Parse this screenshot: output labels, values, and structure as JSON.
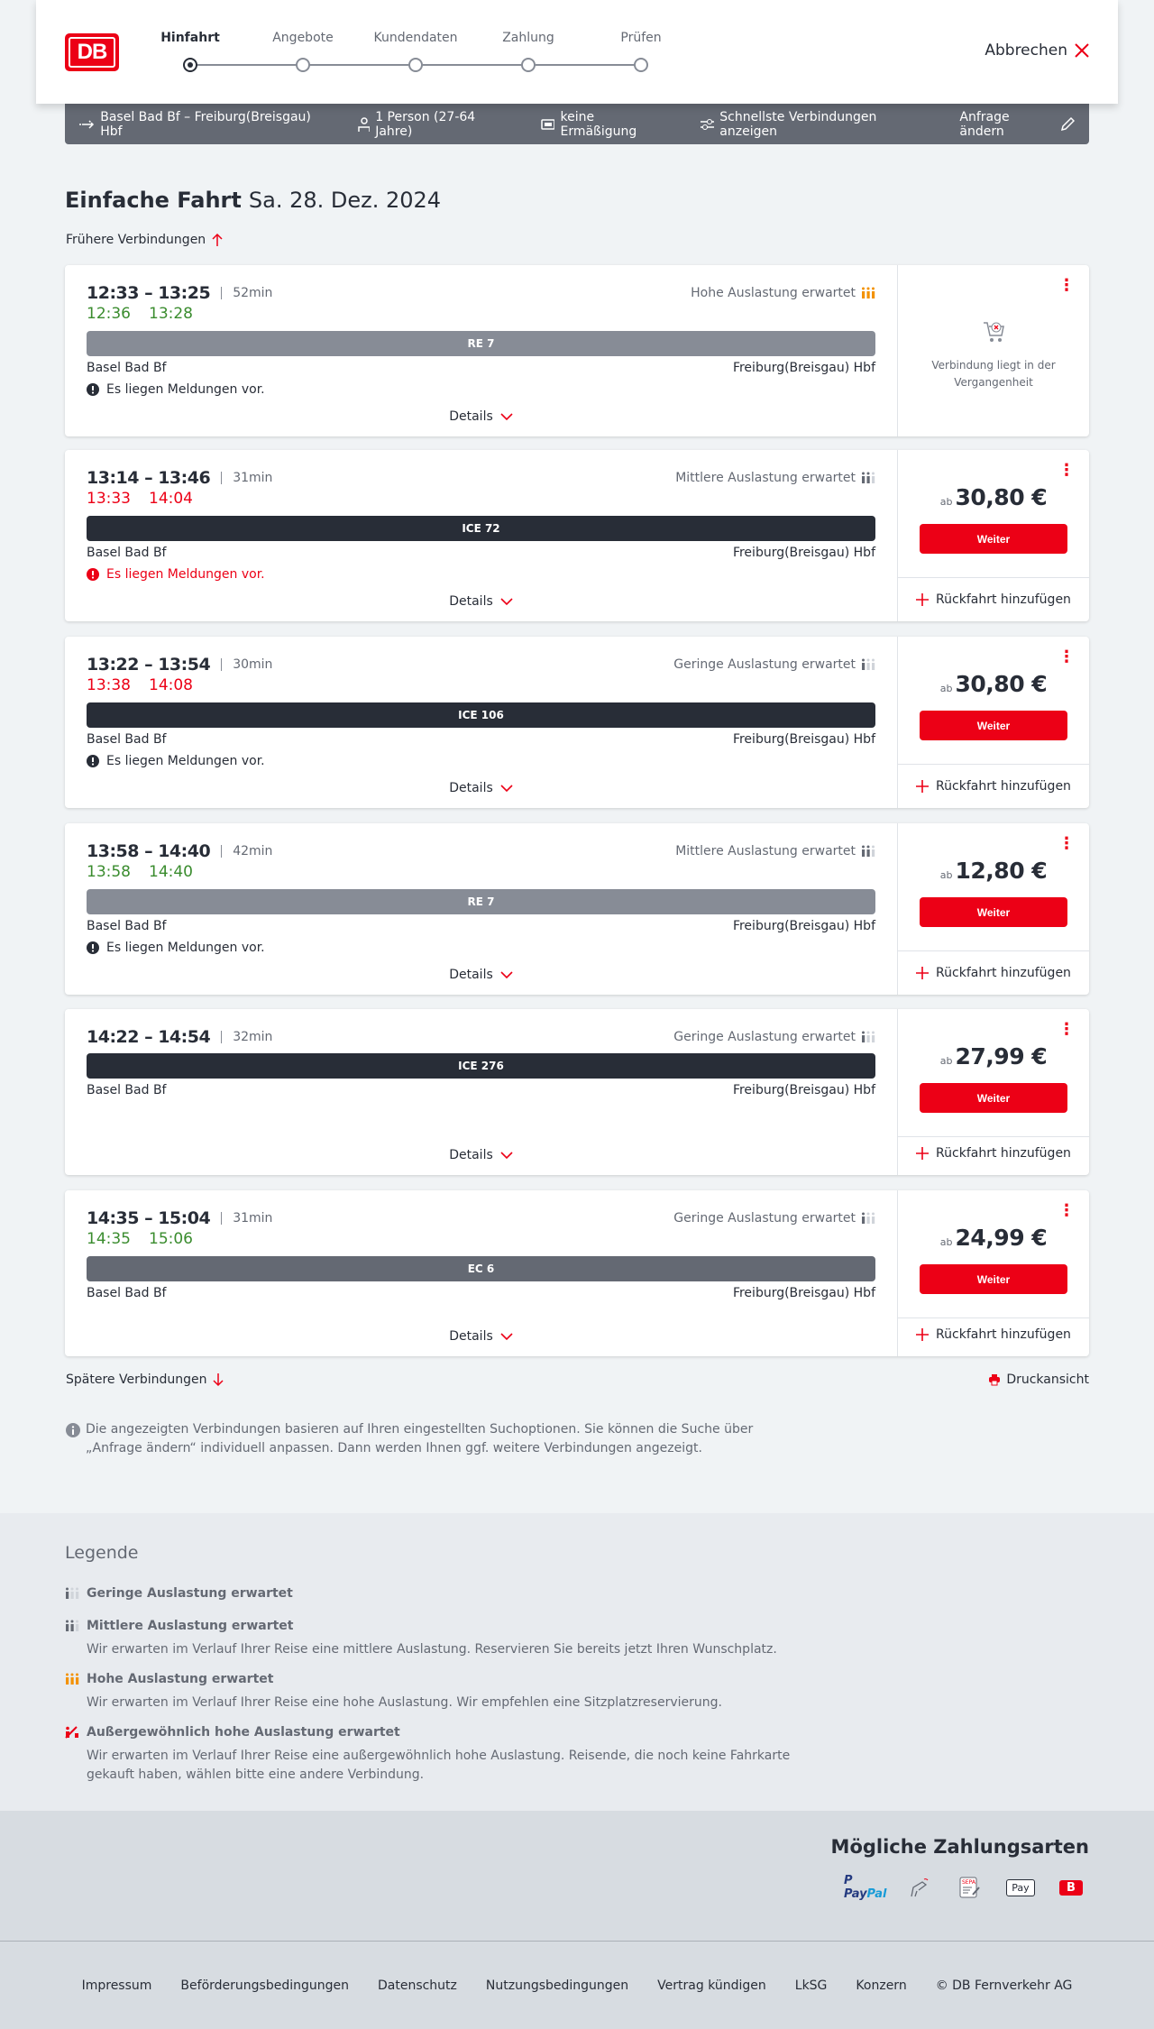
{
  "header": {
    "logo": "DB",
    "steps": [
      "Hinfahrt",
      "Angebote",
      "Kundendaten",
      "Zahlung",
      "Prüfen"
    ],
    "active_step": 0,
    "cancel": "Abbrechen"
  },
  "search_bar": {
    "route": "Basel Bad Bf – Freiburg(Breisgau) Hbf",
    "passengers": "1 Person (27-64 Jahre)",
    "discount": "keine Ermäßigung",
    "fastest": "Schnellste Verbindungen anzeigen",
    "edit": "Anfrage ändern"
  },
  "title": {
    "type": "Einfache Fahrt",
    "date": "Sa. 28. Dez. 2024"
  },
  "earlier": "Frühere Verbindungen",
  "later": "Spätere Verbindungen",
  "print": "Druckansicht",
  "colors": {
    "accent": "#ec0016",
    "on_time": "#3a8c2e",
    "high_occupancy": "#f39200"
  },
  "labels": {
    "details": "Details",
    "weiter": "Weiter",
    "ab": "ab",
    "return": "Rückfahrt hinzufügen",
    "past": "Verbindung liegt in der Vergangenheit"
  },
  "connections": [
    {
      "times": "12:33 – 13:25",
      "duration": "52min",
      "occupancy": "Hohe Auslastung erwartet",
      "occ_level": 3,
      "delay": [
        "12:36",
        "13:28"
      ],
      "delay_status": "on-time",
      "train": "RE 7",
      "train_color": "#878c96",
      "from": "Basel Bad Bf",
      "to": "Freiburg(Breisgau) Hbf",
      "message": "Es liegen Meldungen vor.",
      "message_severity": "info",
      "past": true
    },
    {
      "times": "13:14 – 13:46",
      "duration": "31min",
      "occupancy": "Mittlere Auslastung erwartet",
      "occ_level": 2,
      "delay": [
        "13:33",
        "14:04"
      ],
      "delay_status": "delayed",
      "train": "ICE 72",
      "train_color": "#282d37",
      "from": "Basel Bad Bf",
      "to": "Freiburg(Breisgau) Hbf",
      "message": "Es liegen Meldungen vor.",
      "message_severity": "warning",
      "price": "30,80 €"
    },
    {
      "times": "13:22 – 13:54",
      "duration": "30min",
      "occupancy": "Geringe Auslastung erwartet",
      "occ_level": 1,
      "delay": [
        "13:38",
        "14:08"
      ],
      "delay_status": "delayed",
      "train": "ICE 106",
      "train_color": "#282d37",
      "from": "Basel Bad Bf",
      "to": "Freiburg(Breisgau) Hbf",
      "message": "Es liegen Meldungen vor.",
      "message_severity": "info",
      "price": "30,80 €"
    },
    {
      "times": "13:58 – 14:40",
      "duration": "42min",
      "occupancy": "Mittlere Auslastung erwartet",
      "occ_level": 2,
      "delay": [
        "13:58",
        "14:40"
      ],
      "delay_status": "on-time",
      "train": "RE 7",
      "train_color": "#878c96",
      "from": "Basel Bad Bf",
      "to": "Freiburg(Breisgau) Hbf",
      "message": "Es liegen Meldungen vor.",
      "message_severity": "info",
      "price": "12,80 €"
    },
    {
      "times": "14:22 – 14:54",
      "duration": "32min",
      "occupancy": "Geringe Auslastung erwartet",
      "occ_level": 1,
      "train": "ICE 276",
      "train_color": "#282d37",
      "from": "Basel Bad Bf",
      "to": "Freiburg(Breisgau) Hbf",
      "price": "27,99 €"
    },
    {
      "times": "14:35 – 15:04",
      "duration": "31min",
      "occupancy": "Geringe Auslastung erwartet",
      "occ_level": 1,
      "delay": [
        "14:35",
        "15:06"
      ],
      "delay_status": "on-time",
      "train": "EC 6",
      "train_color": "#646973",
      "from": "Basel Bad Bf",
      "to": "Freiburg(Breisgau) Hbf",
      "price": "24,99 €"
    }
  ],
  "info": "Die angezeigten Verbindungen basieren auf Ihren eingestellten Suchoptionen. Sie können die Suche über „Anfrage ändern“ individuell anpassen. Dann werden Ihnen ggf. weitere Verbindungen angezeigt.",
  "legend": {
    "title": "Legende",
    "items": [
      {
        "title": "Geringe Auslastung erwartet",
        "level": 1,
        "text": ""
      },
      {
        "title": "Mittlere Auslastung erwartet",
        "level": 2,
        "text": "Wir erwarten im Verlauf Ihrer Reise eine mittlere Auslastung. Reservieren Sie bereits jetzt Ihren Wunschplatz."
      },
      {
        "title": "Hohe Auslastung erwartet",
        "level": 3,
        "text": "Wir erwarten im Verlauf Ihrer Reise eine hohe Auslastung. Wir empfehlen eine Sitzplatzreservierung."
      },
      {
        "title": "Außergewöhnlich hohe Auslastung erwartet",
        "level": 4,
        "text": "Wir erwarten im Verlauf Ihrer Reise eine außergewöhnlich hohe Auslastung. Reisende, die noch keine Fahrkarte gekauft haben, wählen bitte eine andere Verbindung."
      }
    ]
  },
  "payment": {
    "title": "Mögliche Zahlungsarten",
    "methods": [
      "PayPal",
      "Kreditkarte",
      "SEPA",
      "Apple Pay",
      "Ratenkauf"
    ]
  },
  "footer": [
    "Impressum",
    "Beförderungsbedingungen",
    "Datenschutz",
    "Nutzungsbedingungen",
    "Vertrag kündigen",
    "LkSG",
    "Konzern",
    "© DB Fernverkehr AG"
  ]
}
